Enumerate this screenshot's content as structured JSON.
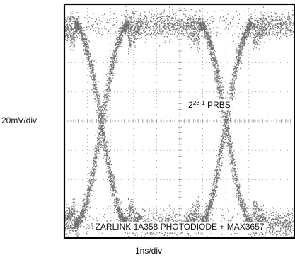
{
  "chart_data": {
    "type": "eye-diagram",
    "xlabel": "1ns/div",
    "ylabel": "20mV/div",
    "annotation": {
      "prefix": "2",
      "exponent": "23-1",
      "suffix": " PRBS"
    },
    "caption": "ZARLINK 1A358 PHOTODIODE + MAX3657",
    "grid": true,
    "divisions": {
      "x": 10,
      "y": 8
    },
    "crossing_times_div": [
      1.6,
      7.0
    ],
    "crossing_level_div": 4.0,
    "upper_rail_div": 7.3,
    "lower_rail_div": 0.5,
    "rail_noise_div": 0.3,
    "trace_color": "#6e6e6e",
    "frame_color": "#000000",
    "grid_color": "#9a9a9a"
  }
}
